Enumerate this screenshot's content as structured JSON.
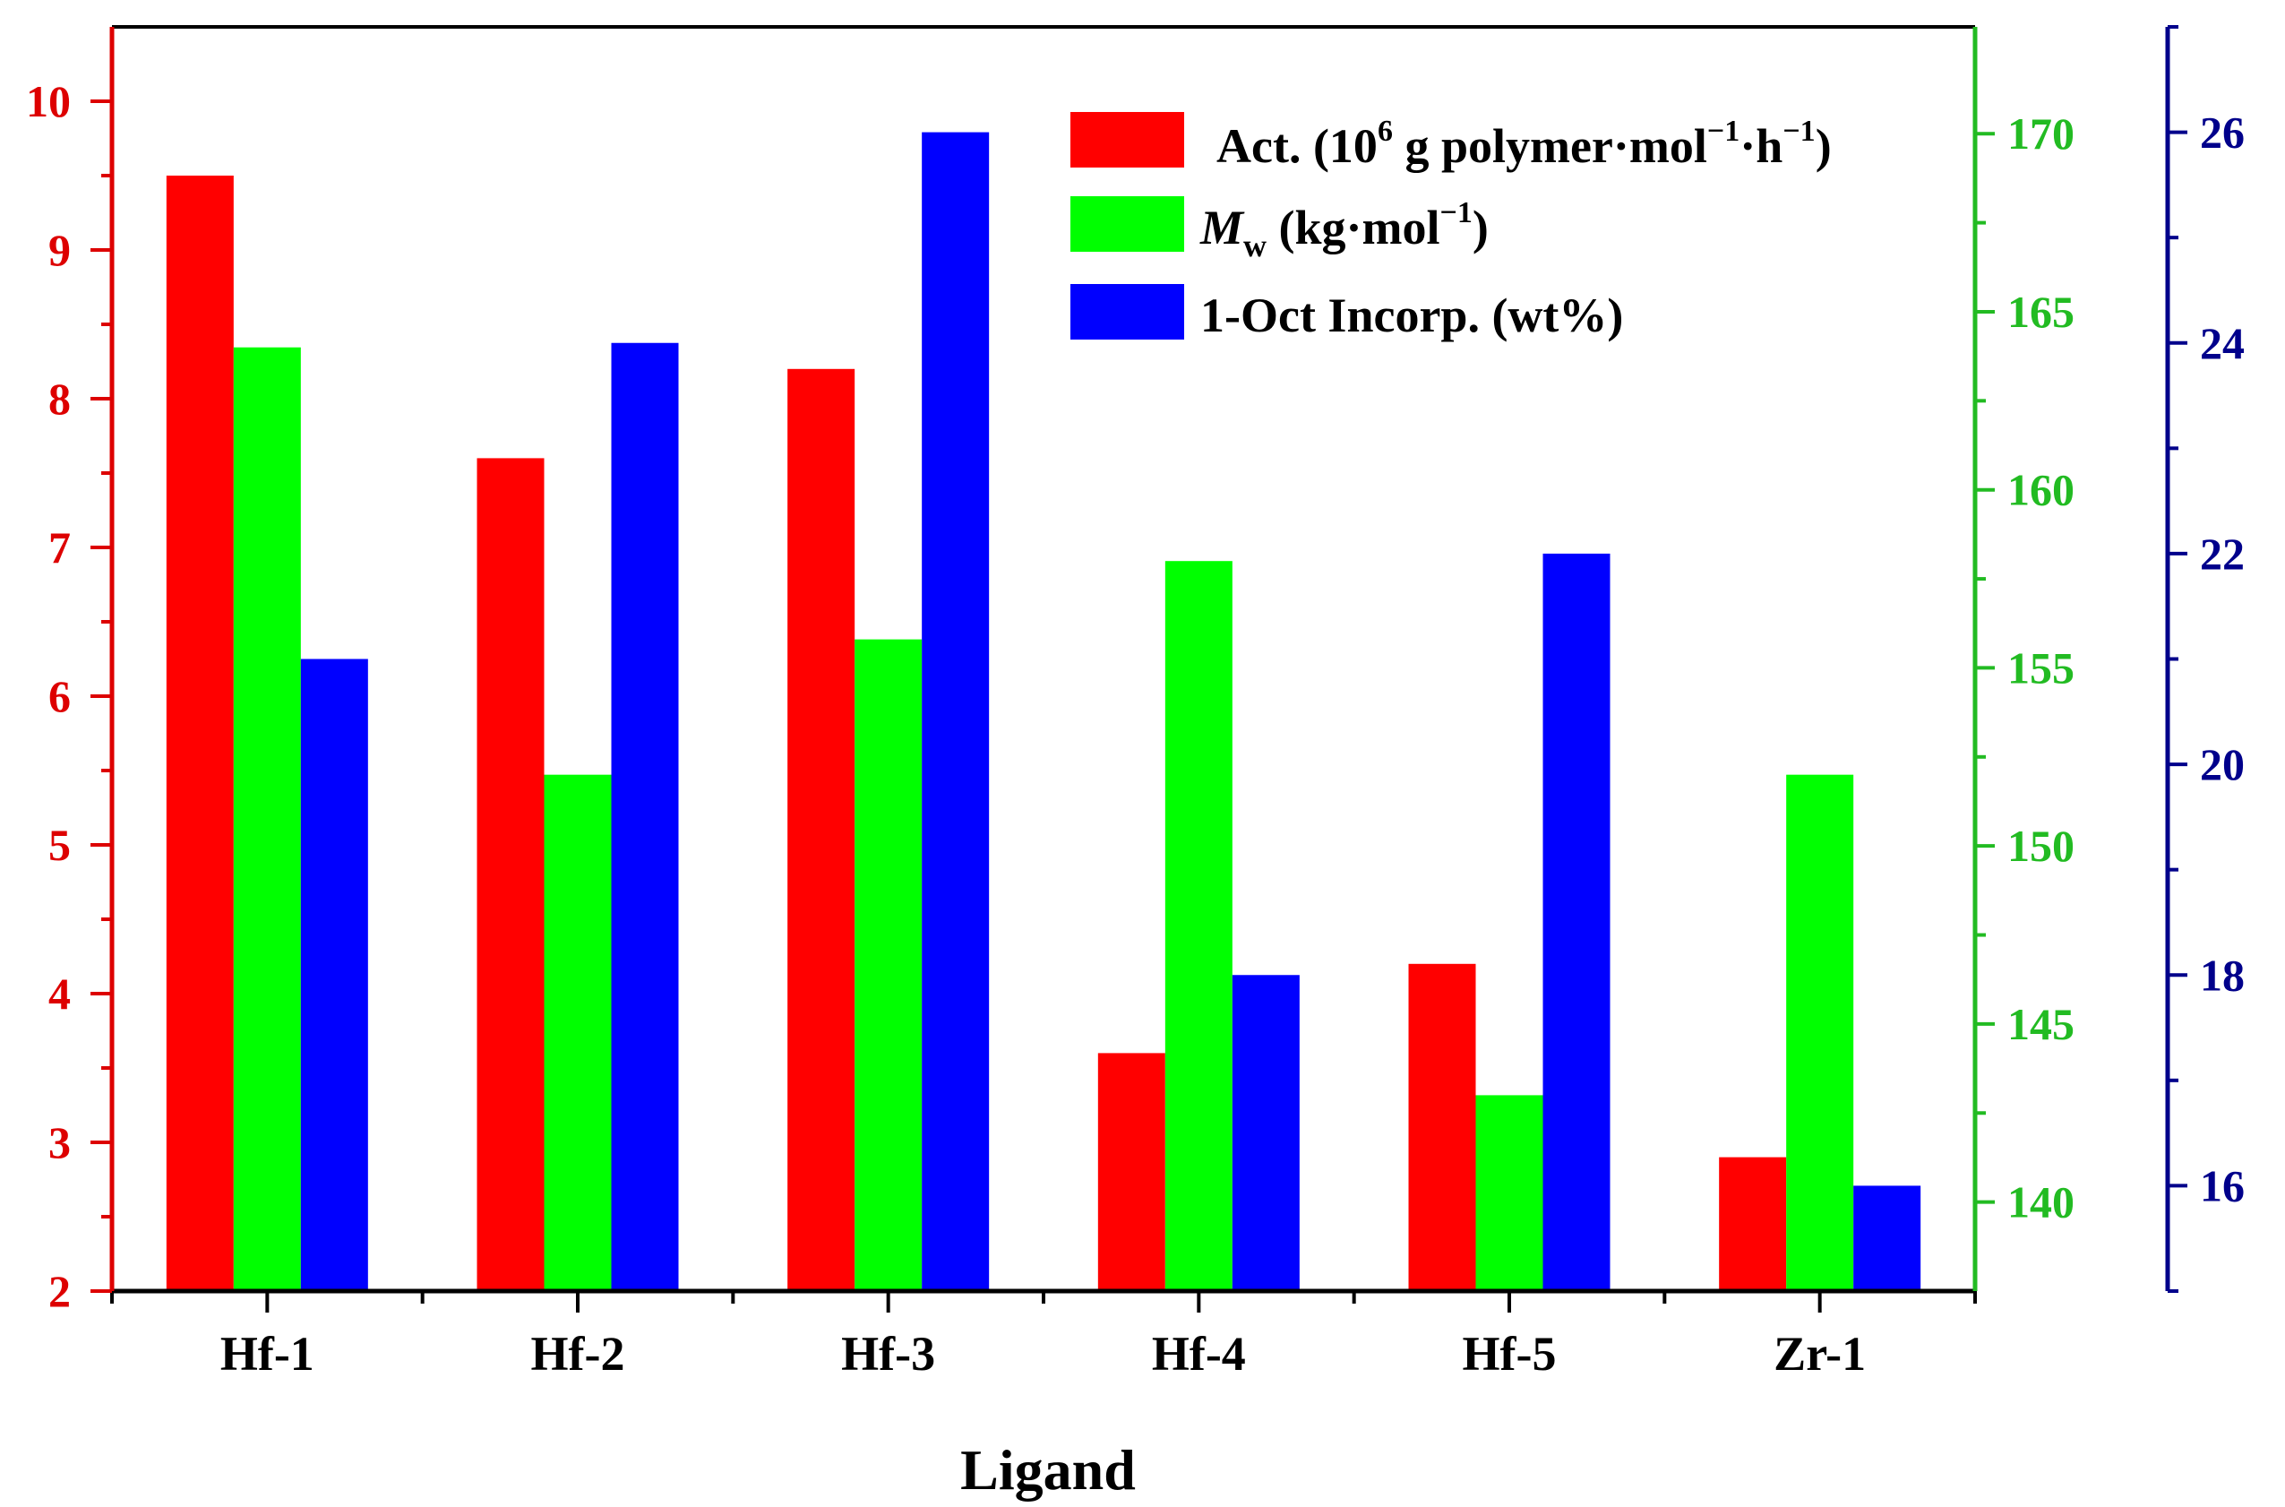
{
  "chart_data": {
    "type": "bar",
    "xlabel": "Ligand",
    "categories": [
      "Hf-1",
      "Hf-2",
      "Hf-3",
      "Hf-4",
      "Hf-5",
      "Zr-1"
    ],
    "series": [
      {
        "name": "Act.",
        "legend": {
          "prefix": "Act. (10",
          "sup1": "6",
          "mid": " g polymer·mol",
          "sup2": "−1",
          "mid2": "·h",
          "sup3": "−1",
          "suffix": ")"
        },
        "color": "#ff0000",
        "axis": "left",
        "values": [
          9.5,
          7.6,
          8.2,
          3.6,
          4.2,
          2.9
        ]
      },
      {
        "name": "Mw",
        "legend": {
          "italic": "M",
          "sub": "w",
          "mid": " (kg·mol",
          "sup": "−1",
          "suffix": ")"
        },
        "color": "#00ff00",
        "axis": "right1",
        "values": [
          164,
          152,
          155.8,
          158,
          143,
          152
        ]
      },
      {
        "name": "1-Oct Incorp.",
        "legend": {
          "text": "1-Oct Incorp. (wt%)"
        },
        "color": "#0000ff",
        "axis": "right2",
        "values": [
          21,
          24,
          26,
          18,
          22,
          16
        ]
      }
    ],
    "axes": {
      "left": {
        "min": 2,
        "max": 10.5,
        "ticks": [
          2,
          3,
          4,
          5,
          6,
          7,
          8,
          9,
          10
        ],
        "color": "#dd0000"
      },
      "right1": {
        "min": 137.5,
        "max": 173,
        "ticks": [
          140,
          145,
          150,
          155,
          160,
          165,
          170
        ],
        "color": "#22bb22"
      },
      "right2": {
        "min": 15,
        "max": 27,
        "ticks": [
          16,
          18,
          20,
          22,
          24,
          26
        ],
        "color": "#00008b"
      }
    },
    "legend_position": "top-right"
  }
}
